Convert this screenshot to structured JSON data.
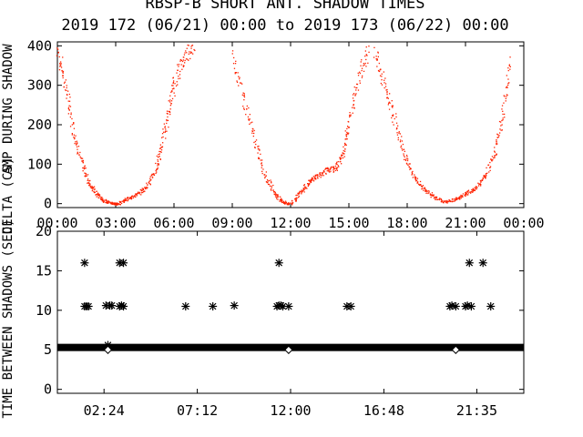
{
  "title": "RBSP-B SHORT ANT. SHADOW TIMES",
  "subtitle": "2019 172 (06/21) 00:00 to 2019 173 (06/22) 00:00",
  "colors": {
    "top_points": "#ff2200",
    "axes": "#000000",
    "background": "#ffffff"
  },
  "chart_data": [
    {
      "type": "scatter",
      "ylabel": "AMP DURING SHADOW",
      "ylabel2": "DELTA (CS)",
      "xlim": [
        0,
        24
      ],
      "ylim": [
        -10,
        410
      ],
      "xticks": [
        0,
        3,
        6,
        9,
        12,
        15,
        18,
        21,
        24
      ],
      "xtick_labels": [
        "00:00",
        "03:00",
        "06:00",
        "09:00",
        "12:00",
        "15:00",
        "18:00",
        "21:00",
        "00:00"
      ],
      "yticks": [
        0,
        100,
        200,
        300,
        400
      ],
      "ytick_labels": [
        "0",
        "100",
        "200",
        "300",
        "400"
      ],
      "series": [
        {
          "color": "#ff2200",
          "branches": [
            {
              "x": [
                0.0,
                0.4,
                0.8,
                1.2,
                1.6,
                2.0,
                2.4,
                2.8,
                3.05
              ],
              "y": [
                390,
                300,
                190,
                110,
                55,
                25,
                8,
                2,
                0
              ]
            },
            {
              "x": [
                3.1,
                3.5,
                4.0,
                4.5,
                5.0,
                5.3,
                5.7,
                6.0,
                6.5,
                7.0
              ],
              "y": [
                0,
                12,
                22,
                40,
                80,
                140,
                230,
                310,
                370,
                405
              ]
            },
            {
              "x": [
                9.0,
                9.6,
                10.2,
                10.7,
                11.2,
                11.6,
                11.9
              ],
              "y": [
                380,
                260,
                150,
                70,
                25,
                5,
                0
              ]
            },
            {
              "x": [
                12.0,
                12.5,
                12.9,
                13.3,
                13.8,
                14.3,
                14.7,
                15.0,
                15.5,
                16.0
              ],
              "y": [
                0,
                30,
                55,
                70,
                85,
                90,
                130,
                210,
                320,
                400
              ]
            },
            {
              "x": [
                16.3,
                16.8,
                17.3,
                17.8,
                18.3,
                18.8,
                19.3,
                19.9
              ],
              "y": [
                390,
                300,
                220,
                130,
                70,
                40,
                20,
                5
              ]
            },
            {
              "x": [
                19.9,
                20.5,
                21.0,
                21.5,
                22.0,
                22.5,
                22.9,
                23.3
              ],
              "y": [
                5,
                12,
                25,
                40,
                70,
                130,
                230,
                360
              ]
            }
          ]
        }
      ]
    },
    {
      "type": "scatter",
      "ylabel": "TIME BETWEEN SHADOWS (SEC)",
      "xlim": [
        0,
        24
      ],
      "ylim": [
        -0.5,
        20
      ],
      "xticks": [
        2.4,
        7.2,
        12.0,
        16.8,
        21.583
      ],
      "xtick_labels": [
        "02:24",
        "07:12",
        "12:00",
        "16:48",
        "21:35"
      ],
      "yticks": [
        0,
        5,
        10,
        15,
        20
      ],
      "ytick_labels": [
        "0",
        "5",
        "10",
        "15",
        "20"
      ],
      "baseline": {
        "y": 5.3,
        "x_start": 0,
        "x_end": 24
      },
      "star_points": {
        "x": [
          1.4,
          1.5,
          1.6,
          2.5,
          2.7,
          2.8,
          3.2,
          3.3,
          3.4,
          1.4,
          3.2,
          3.4,
          2.6,
          6.6,
          8.0,
          9.1,
          11.3,
          11.4,
          11.5,
          11.6,
          11.9,
          14.9,
          15.1,
          20.2,
          20.3,
          20.5,
          21.0,
          21.1,
          21.3,
          21.2,
          21.9,
          22.3,
          11.4
        ],
        "y": [
          10.5,
          10.5,
          10.5,
          10.6,
          10.6,
          10.6,
          10.5,
          10.6,
          10.5,
          16,
          16,
          16,
          5.6,
          10.5,
          10.5,
          10.6,
          10.5,
          10.6,
          10.6,
          10.5,
          10.5,
          10.5,
          10.5,
          10.5,
          10.6,
          10.5,
          10.5,
          10.6,
          10.5,
          16,
          16,
          10.5,
          16
        ]
      },
      "diamond_points": {
        "x": [
          2.6,
          11.9,
          20.5
        ],
        "y": [
          5.0,
          5.0,
          5.0
        ]
      }
    }
  ]
}
